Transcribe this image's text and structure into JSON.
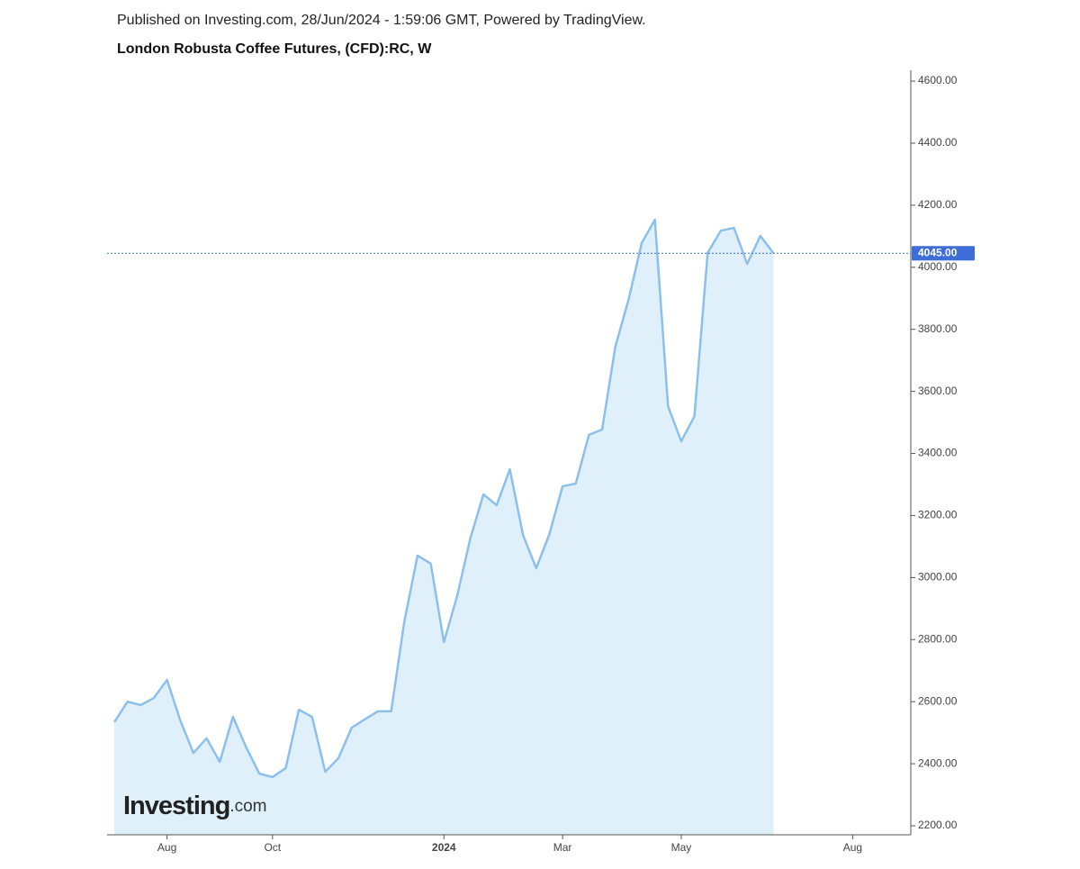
{
  "header": {
    "published": "Published on Investing.com, 28/Jun/2024 - 1:59:06 GMT, Powered by TradingView."
  },
  "chart_data": {
    "type": "area",
    "title": "London Robusta Coffee Futures, (CFD):RC, W",
    "categories": [
      null,
      null,
      null,
      null,
      "Aug",
      null,
      null,
      null,
      null,
      null,
      null,
      null,
      "Oct",
      null,
      null,
      null,
      null,
      null,
      null,
      null,
      null,
      null,
      null,
      null,
      null,
      "2024",
      null,
      null,
      null,
      null,
      null,
      null,
      null,
      null,
      "Mar",
      null,
      null,
      null,
      null,
      null,
      null,
      null,
      null,
      "May",
      null,
      null,
      null,
      null,
      null,
      null,
      null,
      null,
      null,
      null,
      null,
      null,
      "Aug",
      null,
      null,
      null,
      null
    ],
    "series": [
      {
        "name": "RC",
        "color": "#8cc0ec",
        "values": [
          2534,
          2600,
          2589,
          2612,
          2670,
          2540,
          2435,
          2482,
          2406,
          2551,
          2453,
          2368,
          2357,
          2386,
          2574,
          2551,
          2374,
          2418,
          2516,
          2543,
          2569,
          2569,
          2859,
          3071,
          3045,
          2792,
          2940,
          3126,
          3268,
          3233,
          3349,
          3137,
          3030,
          3140,
          3294,
          3303,
          3460,
          3477,
          3744,
          3895,
          4078,
          4153,
          3552,
          3439,
          3520,
          4046,
          4118,
          4127,
          4011,
          4101,
          4045,
          null,
          null,
          null,
          null,
          null,
          null,
          null,
          null,
          null,
          null
        ]
      }
    ],
    "last_price": {
      "value": 4045,
      "label": "4045.00"
    },
    "ylim": [
      2171,
      4635
    ],
    "yticks": [
      {
        "value": 2200,
        "label": "2200.00"
      },
      {
        "value": 2400,
        "label": "2400.00"
      },
      {
        "value": 2600,
        "label": "2600.00"
      },
      {
        "value": 2800,
        "label": "2800.00"
      },
      {
        "value": 3000,
        "label": "3000.00"
      },
      {
        "value": 3200,
        "label": "3200.00"
      },
      {
        "value": 3400,
        "label": "3400.00"
      },
      {
        "value": 3600,
        "label": "3600.00"
      },
      {
        "value": 3800,
        "label": "3800.00"
      },
      {
        "value": 4000,
        "label": "4000.00"
      },
      {
        "value": 4200,
        "label": "4200.00"
      },
      {
        "value": 4400,
        "label": "4400.00"
      },
      {
        "value": 4600,
        "label": "4600.00"
      }
    ],
    "area_color": "#e0f0fa",
    "price_line_color": "#3d6ed8"
  },
  "watermark": {
    "brand": "Investing",
    "suffix": ".com"
  }
}
